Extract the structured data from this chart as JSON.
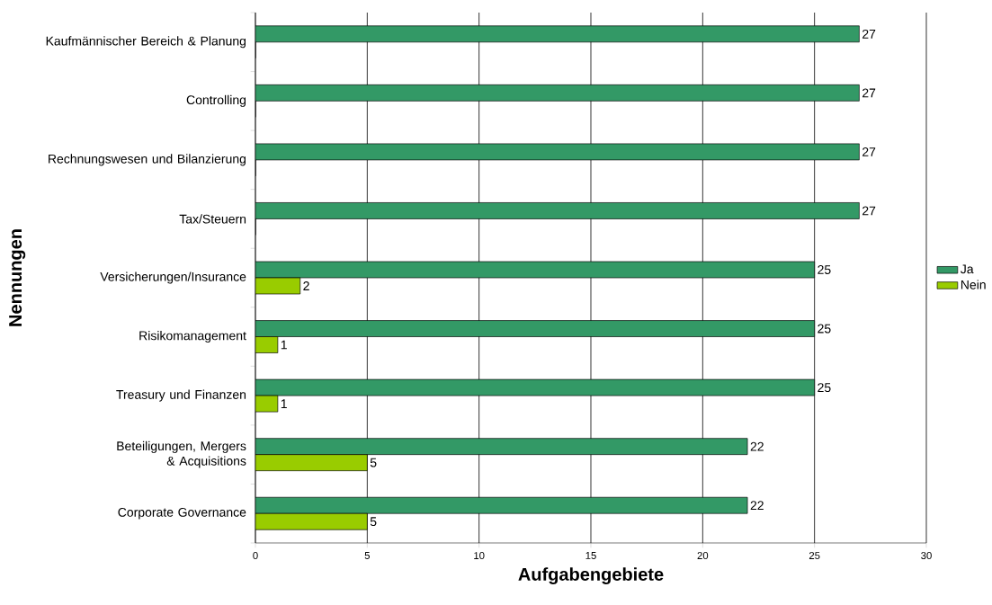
{
  "chart_data": {
    "type": "bar",
    "orientation": "horizontal",
    "xlabel": "Aufgabengebiete",
    "ylabel": "Nennungen",
    "categories": [
      "Kaufmännischer Bereich & Planung",
      "Controlling",
      "Rechnungswesen und Bilanzierung",
      "Tax/Steuern",
      "Versicherungen/Insurance",
      "Risikomanagement",
      "Treasury und Finanzen",
      "Beteiligungen, Mergers & Acquisitions",
      "Corporate Governance"
    ],
    "series": [
      {
        "name": "Ja",
        "color": "#339966",
        "values": [
          27,
          27,
          27,
          27,
          25,
          25,
          25,
          22,
          22
        ],
        "value_labels": [
          "27",
          "27",
          "27",
          "27",
          "25",
          "25",
          "25",
          "22",
          "22"
        ]
      },
      {
        "name": "Nein",
        "color": "#99cc00",
        "values": [
          0,
          0,
          0,
          0,
          2,
          1,
          1,
          5,
          5
        ],
        "value_labels": [
          null,
          null,
          null,
          null,
          "2",
          "1",
          "1",
          "5",
          "5"
        ]
      }
    ],
    "xlim": [
      0,
      30
    ],
    "xticks": [
      0,
      5,
      10,
      15,
      20,
      25,
      30
    ],
    "grid": "x",
    "legend": "right"
  }
}
